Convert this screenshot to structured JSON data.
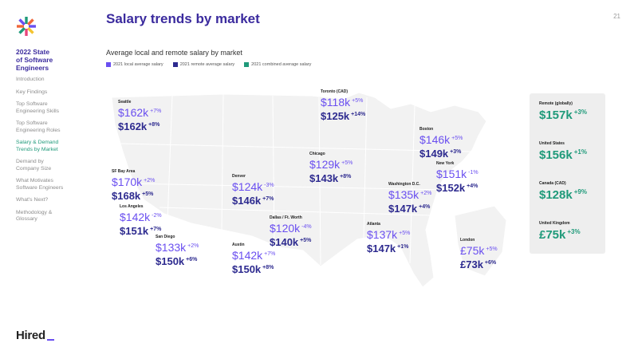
{
  "header": {
    "title": "Salary trends by market",
    "page_number": "21"
  },
  "sidebar": {
    "title": "2022 State\nof Software\nEngineers",
    "items": [
      {
        "label": "Introduction",
        "active": false
      },
      {
        "label": "Key Findings",
        "active": false
      },
      {
        "label": "Top Software\nEngineering Skills",
        "active": false
      },
      {
        "label": "Top Software\nEngineering Roles",
        "active": false
      },
      {
        "label": "Salary & Demand\nTrends by Market",
        "active": true
      },
      {
        "label": "Demand by\nCompany Size",
        "active": false
      },
      {
        "label": "What Motivates\nSoftware Engineers",
        "active": false
      },
      {
        "label": "What's Next?",
        "active": false
      },
      {
        "label": "Methodology &\nGlossary",
        "active": false
      }
    ]
  },
  "brand": {
    "name": "Hired"
  },
  "main": {
    "subtitle": "Average local and remote salary by market",
    "legend": [
      {
        "label": "2021 local average salary",
        "color": "#6a4ff0"
      },
      {
        "label": "2021 remote average salary",
        "color": "#2d2a8f"
      },
      {
        "label": "2021 combined average salary",
        "color": "#1f9a7a"
      }
    ],
    "cities": [
      {
        "name": "Seattle",
        "local": "$162k",
        "local_change": "+7%",
        "remote": "$162k",
        "remote_change": "+8%"
      },
      {
        "name": "SF Bay Area",
        "local": "$170k",
        "local_change": "+2%",
        "remote": "$168k",
        "remote_change": "+5%"
      },
      {
        "name": "Los Angeles",
        "local": "$142k",
        "local_change": "-2%",
        "remote": "$151k",
        "remote_change": "+7%"
      },
      {
        "name": "San Diego",
        "local": "$133k",
        "local_change": "+2%",
        "remote": "$150k",
        "remote_change": "+6%"
      },
      {
        "name": "Denver",
        "local": "$124k",
        "local_change": "-3%",
        "remote": "$146k",
        "remote_change": "+7%"
      },
      {
        "name": "Austin",
        "local": "$142k",
        "local_change": "+7%",
        "remote": "$150k",
        "remote_change": "+8%"
      },
      {
        "name": "Dallas / Ft. Worth",
        "local": "$120k",
        "local_change": "-4%",
        "remote": "$140k",
        "remote_change": "+5%"
      },
      {
        "name": "Toronto (CAD)",
        "local": "$118k",
        "local_change": "+5%",
        "remote": "$125k",
        "remote_change": "+14%"
      },
      {
        "name": "Chicago",
        "local": "$129k",
        "local_change": "+5%",
        "remote": "$143k",
        "remote_change": "+8%"
      },
      {
        "name": "Atlanta",
        "local": "$137k",
        "local_change": "+5%",
        "remote": "$147k",
        "remote_change": "+1%"
      },
      {
        "name": "Washington D.C.",
        "local": "$135k",
        "local_change": "+2%",
        "remote": "$147k",
        "remote_change": "+4%"
      },
      {
        "name": "Boston",
        "local": "$146k",
        "local_change": "+5%",
        "remote": "$149k",
        "remote_change": "+3%"
      },
      {
        "name": "New York",
        "local": "$151k",
        "local_change": "-1%",
        "remote": "$152k",
        "remote_change": "+4%"
      },
      {
        "name": "London",
        "local": "£75k",
        "local_change": "+5%",
        "remote": "£73k",
        "remote_change": "+6%"
      }
    ],
    "combined": [
      {
        "name": "Remote (globally)",
        "value": "$157k",
        "change": "+3%"
      },
      {
        "name": "United States",
        "value": "$156k",
        "change": "+1%"
      },
      {
        "name": "Canada (CAD)",
        "value": "$128k",
        "change": "+9%"
      },
      {
        "name": "United Kingdom",
        "value": "£75k",
        "change": "+3%"
      }
    ]
  }
}
